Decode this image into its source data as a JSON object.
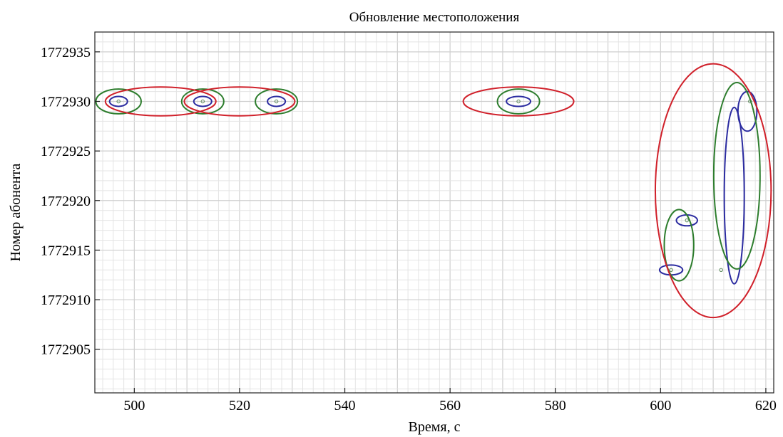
{
  "chart_data": {
    "type": "scatter",
    "title": "Обновление местоположения",
    "xlabel": "Время, с",
    "ylabel": "Номер абонента",
    "xlim": [
      492.5,
      621.5
    ],
    "ylim": [
      1772900.6,
      1772937.0
    ],
    "x_ticks": [
      500,
      520,
      540,
      560,
      580,
      600,
      620
    ],
    "x_tick_labels": [
      "500",
      "520",
      "540",
      "560",
      "580",
      "600",
      "620"
    ],
    "y_ticks": [
      1772905,
      1772910,
      1772915,
      1772920,
      1772925,
      1772930,
      1772935
    ],
    "y_tick_labels": [
      "1772905",
      "1772910",
      "1772915",
      "1772920",
      "1772925",
      "1772930",
      "1772935"
    ],
    "grid": true,
    "points": [
      {
        "x": 497,
        "y": 1772930
      },
      {
        "x": 513,
        "y": 1772930
      },
      {
        "x": 527,
        "y": 1772930
      },
      {
        "x": 573,
        "y": 1772930
      },
      {
        "x": 602,
        "y": 1772913
      },
      {
        "x": 605,
        "y": 1772918
      },
      {
        "x": 611.5,
        "y": 1772913
      },
      {
        "x": 617,
        "y": 1772930
      }
    ],
    "ellipse_groups": [
      {
        "color": "#2b2ba0",
        "ellipses": [
          {
            "cx": 497,
            "cy": 1772930,
            "rx": 1.7,
            "ry": 0.5
          },
          {
            "cx": 513,
            "cy": 1772930,
            "rx": 1.7,
            "ry": 0.5
          },
          {
            "cx": 527,
            "cy": 1772930,
            "rx": 1.7,
            "ry": 0.5
          },
          {
            "cx": 573,
            "cy": 1772930,
            "rx": 2.3,
            "ry": 0.5
          },
          {
            "cx": 602,
            "cy": 1772913,
            "rx": 2.2,
            "ry": 0.5
          },
          {
            "cx": 605,
            "cy": 1772918,
            "rx": 2.0,
            "ry": 0.55
          },
          {
            "cx": 614,
            "cy": 1772920.5,
            "rx": 1.9,
            "ry": 8.9
          },
          {
            "cx": 616.5,
            "cy": 1772929,
            "rx": 1.8,
            "ry": 2.0
          }
        ]
      },
      {
        "color": "#2d7d2d",
        "ellipses": [
          {
            "cx": 497,
            "cy": 1772930,
            "rx": 4.3,
            "ry": 1.25
          },
          {
            "cx": 513,
            "cy": 1772930,
            "rx": 4.0,
            "ry": 1.25
          },
          {
            "cx": 527,
            "cy": 1772930,
            "rx": 4.0,
            "ry": 1.25
          },
          {
            "cx": 573,
            "cy": 1772930,
            "rx": 4.0,
            "ry": 1.25
          },
          {
            "cx": 603.5,
            "cy": 1772915.5,
            "rx": 2.8,
            "ry": 3.6
          },
          {
            "cx": 614.5,
            "cy": 1772922.5,
            "rx": 4.4,
            "ry": 9.4
          }
        ]
      },
      {
        "color": "#d0202a",
        "ellipses": [
          {
            "cx": 505,
            "cy": 1772930,
            "rx": 10.5,
            "ry": 1.45
          },
          {
            "cx": 520,
            "cy": 1772930,
            "rx": 10.5,
            "ry": 1.45
          },
          {
            "cx": 573,
            "cy": 1772930,
            "rx": 10.5,
            "ry": 1.45
          },
          {
            "cx": 610,
            "cy": 1772921,
            "rx": 11.0,
            "ry": 12.8
          }
        ]
      }
    ]
  }
}
